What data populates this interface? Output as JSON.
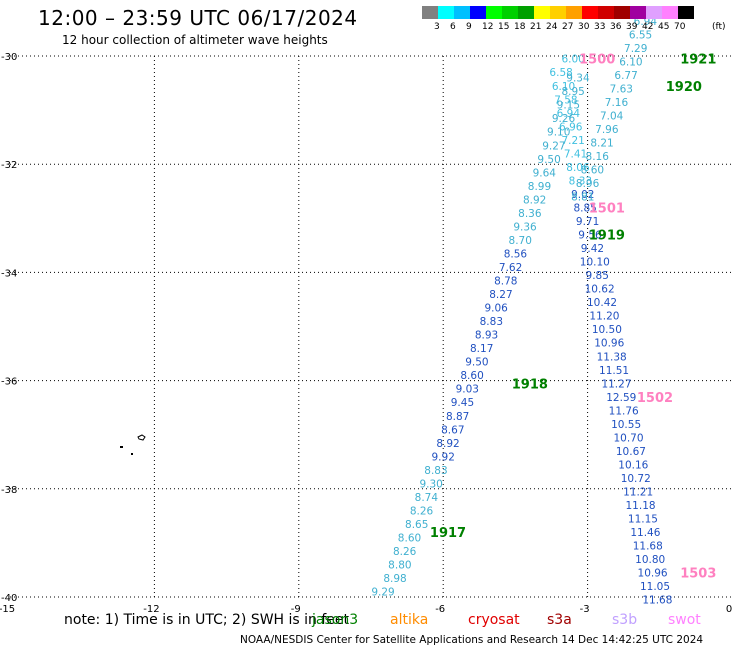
{
  "header": {
    "title": "12:00 – 23:59 UTC 06/17/2024",
    "subtitle": "12 hour collection of altimeter wave heights"
  },
  "color_scale": {
    "unit": "(ft)",
    "thresholds": [
      "3",
      "6",
      "9",
      "12",
      "15",
      "18",
      "21",
      "24",
      "27",
      "30",
      "33",
      "36",
      "39",
      "42",
      "45",
      "70"
    ],
    "colors": [
      "#808080",
      "#00ffff",
      "#00c0ff",
      "#0000ff",
      "#00ff00",
      "#00d000",
      "#00a000",
      "#ffff00",
      "#ffd000",
      "#ffa000",
      "#ff0000",
      "#d00000",
      "#a00000",
      "#a000a0",
      "#e0a0ff",
      "#ff80ff",
      "#000000"
    ]
  },
  "chart_data": {
    "type": "scatter",
    "title": "12:00 – 23:59 UTC 06/17/2024",
    "subtitle": "12 hour collection of altimeter wave heights",
    "xlim": [
      -15,
      0
    ],
    "ylim": [
      -40,
      -30
    ],
    "x_ticks": [
      -15,
      -12,
      -9,
      -6,
      -3,
      0
    ],
    "y_ticks": [
      -30,
      -32,
      -34,
      -36,
      -38,
      -40
    ],
    "x_tick_labels": [
      "-15",
      "-12",
      "-9",
      "-6",
      "-3",
      "0"
    ],
    "y_tick_labels": [
      "-30",
      "-32",
      "-34",
      "-36",
      "-38",
      "-40"
    ],
    "grid": true,
    "series": [
      {
        "name": "1500",
        "color": "#40c0e0",
        "points": [
          {
            "x": -3.3,
            "y": -30.05,
            "v": "6.00"
          },
          {
            "x": -3.55,
            "y": -30.3,
            "v": "6.58"
          },
          {
            "x": -3.5,
            "y": -30.55,
            "v": "6.10"
          },
          {
            "x": -3.45,
            "y": -30.8,
            "v": "7.58"
          },
          {
            "x": -3.4,
            "y": -31.05,
            "v": "6.94"
          },
          {
            "x": -3.35,
            "y": -31.3,
            "v": "6.96"
          },
          {
            "x": -3.3,
            "y": -31.55,
            "v": "7.21"
          },
          {
            "x": -3.25,
            "y": -31.8,
            "v": "7.41"
          },
          {
            "x": -3.2,
            "y": -32.05,
            "v": "8.06"
          },
          {
            "x": -3.15,
            "y": -32.3,
            "v": "8.33"
          }
        ]
      },
      {
        "name": "1501",
        "color": "#2050c0",
        "points": [
          {
            "x": -3.1,
            "y": -32.55,
            "v": "9.02"
          },
          {
            "x": -3.05,
            "y": -32.8,
            "v": "8.85"
          },
          {
            "x": -3.0,
            "y": -33.05,
            "v": "9.71"
          },
          {
            "x": -2.95,
            "y": -33.3,
            "v": "9.56"
          },
          {
            "x": -2.9,
            "y": -33.55,
            "v": "9.42"
          },
          {
            "x": -2.85,
            "y": -33.8,
            "v": "10.10"
          },
          {
            "x": -2.8,
            "y": -34.05,
            "v": "9.85"
          },
          {
            "x": -2.75,
            "y": -34.3,
            "v": "10.62"
          },
          {
            "x": -2.7,
            "y": -34.55,
            "v": "10.42"
          },
          {
            "x": -2.65,
            "y": -34.8,
            "v": "11.20"
          },
          {
            "x": -2.6,
            "y": -35.05,
            "v": "10.50"
          },
          {
            "x": -2.55,
            "y": -35.3,
            "v": "10.96"
          },
          {
            "x": -2.5,
            "y": -35.55,
            "v": "11.38"
          },
          {
            "x": -2.45,
            "y": -35.8,
            "v": "11.51"
          },
          {
            "x": -2.4,
            "y": -36.05,
            "v": "11.27"
          }
        ]
      },
      {
        "name": "1502",
        "color": "#2050c0",
        "points": [
          {
            "x": -2.3,
            "y": -36.3,
            "v": "12.59"
          },
          {
            "x": -2.25,
            "y": -36.55,
            "v": "11.76"
          },
          {
            "x": -2.2,
            "y": -36.8,
            "v": "10.55"
          },
          {
            "x": -2.15,
            "y": -37.05,
            "v": "10.70"
          },
          {
            "x": -2.1,
            "y": -37.3,
            "v": "10.67"
          },
          {
            "x": -2.05,
            "y": -37.55,
            "v": "10.16"
          },
          {
            "x": -2.0,
            "y": -37.8,
            "v": "10.72"
          },
          {
            "x": -1.95,
            "y": -38.05,
            "v": "11.21"
          },
          {
            "x": -1.9,
            "y": -38.3,
            "v": "11.18"
          },
          {
            "x": -1.85,
            "y": -38.55,
            "v": "11.15"
          },
          {
            "x": -1.8,
            "y": -38.8,
            "v": "11.46"
          },
          {
            "x": -1.75,
            "y": -39.05,
            "v": "11.68"
          },
          {
            "x": -1.7,
            "y": -39.3,
            "v": "10.80"
          },
          {
            "x": -1.65,
            "y": -39.55,
            "v": "10.96"
          },
          {
            "x": -1.6,
            "y": -39.8,
            "v": "11.05"
          },
          {
            "x": -1.55,
            "y": -40.05,
            "v": "11.68"
          }
        ]
      },
      {
        "name": "1917",
        "color": "#40b0d0",
        "points": [
          {
            "x": -7.25,
            "y": -39.9,
            "v": "9.29"
          },
          {
            "x": -7.0,
            "y": -39.65,
            "v": "8.98"
          },
          {
            "x": -6.9,
            "y": -39.4,
            "v": "8.80"
          },
          {
            "x": -6.8,
            "y": -39.15,
            "v": "8.26"
          },
          {
            "x": -6.7,
            "y": -38.9,
            "v": "8.60"
          },
          {
            "x": -6.55,
            "y": -38.65,
            "v": "8.65"
          },
          {
            "x": -6.45,
            "y": -38.4,
            "v": "8.26"
          },
          {
            "x": -6.35,
            "y": -38.15,
            "v": "8.74"
          },
          {
            "x": -6.25,
            "y": -37.9,
            "v": "9.30"
          },
          {
            "x": -6.15,
            "y": -37.65,
            "v": "8.83"
          }
        ]
      },
      {
        "name": "1918",
        "color": "#2050c0",
        "points": [
          {
            "x": -6.0,
            "y": -37.4,
            "v": "9.92"
          },
          {
            "x": -5.9,
            "y": -37.15,
            "v": "8.92"
          },
          {
            "x": -5.8,
            "y": -36.9,
            "v": "8.67"
          },
          {
            "x": -5.7,
            "y": -36.65,
            "v": "8.87"
          },
          {
            "x": -5.6,
            "y": -36.4,
            "v": "9.45"
          },
          {
            "x": -5.5,
            "y": -36.15,
            "v": "9.03"
          },
          {
            "x": -5.4,
            "y": -35.9,
            "v": "8.60"
          },
          {
            "x": -5.3,
            "y": -35.65,
            "v": "9.50"
          },
          {
            "x": -5.2,
            "y": -35.4,
            "v": "8.17"
          },
          {
            "x": -5.1,
            "y": -35.15,
            "v": "8.93"
          },
          {
            "x": -5.0,
            "y": -34.9,
            "v": "8.83"
          },
          {
            "x": -4.9,
            "y": -34.65,
            "v": "9.06"
          },
          {
            "x": -4.8,
            "y": -34.4,
            "v": "8.27"
          },
          {
            "x": -4.7,
            "y": -34.15,
            "v": "8.78"
          },
          {
            "x": -4.6,
            "y": -33.9,
            "v": "7.62"
          },
          {
            "x": -4.5,
            "y": -33.65,
            "v": "8.56"
          }
        ]
      },
      {
        "name": "1919",
        "color": "#40b0d0",
        "points": [
          {
            "x": -4.4,
            "y": -33.4,
            "v": "8.70"
          },
          {
            "x": -4.3,
            "y": -33.15,
            "v": "9.36"
          },
          {
            "x": -4.2,
            "y": -32.9,
            "v": "8.36"
          },
          {
            "x": -4.1,
            "y": -32.65,
            "v": "8.92"
          },
          {
            "x": -4.0,
            "y": -32.4,
            "v": "8.99"
          },
          {
            "x": -3.9,
            "y": -32.15,
            "v": "9.64"
          },
          {
            "x": -3.8,
            "y": -31.9,
            "v": "9.50"
          },
          {
            "x": -3.7,
            "y": -31.65,
            "v": "9.27"
          },
          {
            "x": -3.6,
            "y": -31.4,
            "v": "9.10"
          },
          {
            "x": -3.5,
            "y": -31.15,
            "v": "9.26"
          },
          {
            "x": -3.4,
            "y": -30.9,
            "v": "9.15"
          },
          {
            "x": -3.3,
            "y": -30.65,
            "v": "8.95"
          },
          {
            "x": -3.2,
            "y": -30.4,
            "v": "9.34"
          }
        ]
      },
      {
        "name": "1920",
        "color": "#40b0d0",
        "points": [
          {
            "x": -3.1,
            "y": -32.6,
            "v": "8.81"
          },
          {
            "x": -3.0,
            "y": -32.35,
            "v": "8.96"
          },
          {
            "x": -2.9,
            "y": -32.1,
            "v": "8.60"
          },
          {
            "x": -2.8,
            "y": -31.85,
            "v": "8.16"
          },
          {
            "x": -2.7,
            "y": -31.6,
            "v": "8.21"
          },
          {
            "x": -2.6,
            "y": -31.35,
            "v": "7.96"
          },
          {
            "x": -2.5,
            "y": -31.1,
            "v": "7.04"
          },
          {
            "x": -2.4,
            "y": -30.85,
            "v": "7.16"
          },
          {
            "x": -2.3,
            "y": -30.6,
            "v": "7.63"
          },
          {
            "x": -2.2,
            "y": -30.35,
            "v": "6.77"
          },
          {
            "x": -2.1,
            "y": -30.1,
            "v": "6.10"
          }
        ]
      },
      {
        "name": "1921",
        "color": "#40b0d0",
        "points": [
          {
            "x": -2.0,
            "y": -29.85,
            "v": "7.29"
          },
          {
            "x": -1.9,
            "y": -29.6,
            "v": "6.55"
          },
          {
            "x": -1.8,
            "y": -29.35,
            "v": "6.94"
          }
        ]
      }
    ],
    "pass_labels": [
      {
        "label": "1500",
        "x": -2.8,
        "y": -30.05,
        "color": "#ff80c0"
      },
      {
        "label": "1501",
        "x": -2.6,
        "y": -32.8,
        "color": "#ff80c0"
      },
      {
        "label": "1502",
        "x": -1.6,
        "y": -36.3,
        "color": "#ff80c0"
      },
      {
        "label": "1503",
        "x": -0.7,
        "y": -39.55,
        "color": "#ff80c0"
      },
      {
        "label": "1917",
        "x": -5.9,
        "y": -38.8,
        "color": "#008000"
      },
      {
        "label": "1918",
        "x": -4.2,
        "y": -36.05,
        "color": "#008000"
      },
      {
        "label": "1919",
        "x": -2.6,
        "y": -33.3,
        "color": "#008000"
      },
      {
        "label": "1920",
        "x": -1.0,
        "y": -30.55,
        "color": "#008000"
      },
      {
        "label": "1921",
        "x": -0.7,
        "y": -30.05,
        "color": "#008000"
      }
    ]
  },
  "footer": {
    "note": "note:  1) Time is in UTC; 2) SWH is in feet",
    "satellites": [
      {
        "name": "jason3",
        "color": "#008000"
      },
      {
        "name": "altika",
        "color": "#ff8c00"
      },
      {
        "name": "cryosat",
        "color": "#e00000"
      },
      {
        "name": "s3a",
        "color": "#a00000"
      },
      {
        "name": "s3b",
        "color": "#c0a0ff"
      },
      {
        "name": "swot",
        "color": "#ff80ff"
      }
    ],
    "credit": "NOAA/NESDIS Center for Satellite Applications and Research    14 Dec 14:42:25 UTC 2024"
  }
}
